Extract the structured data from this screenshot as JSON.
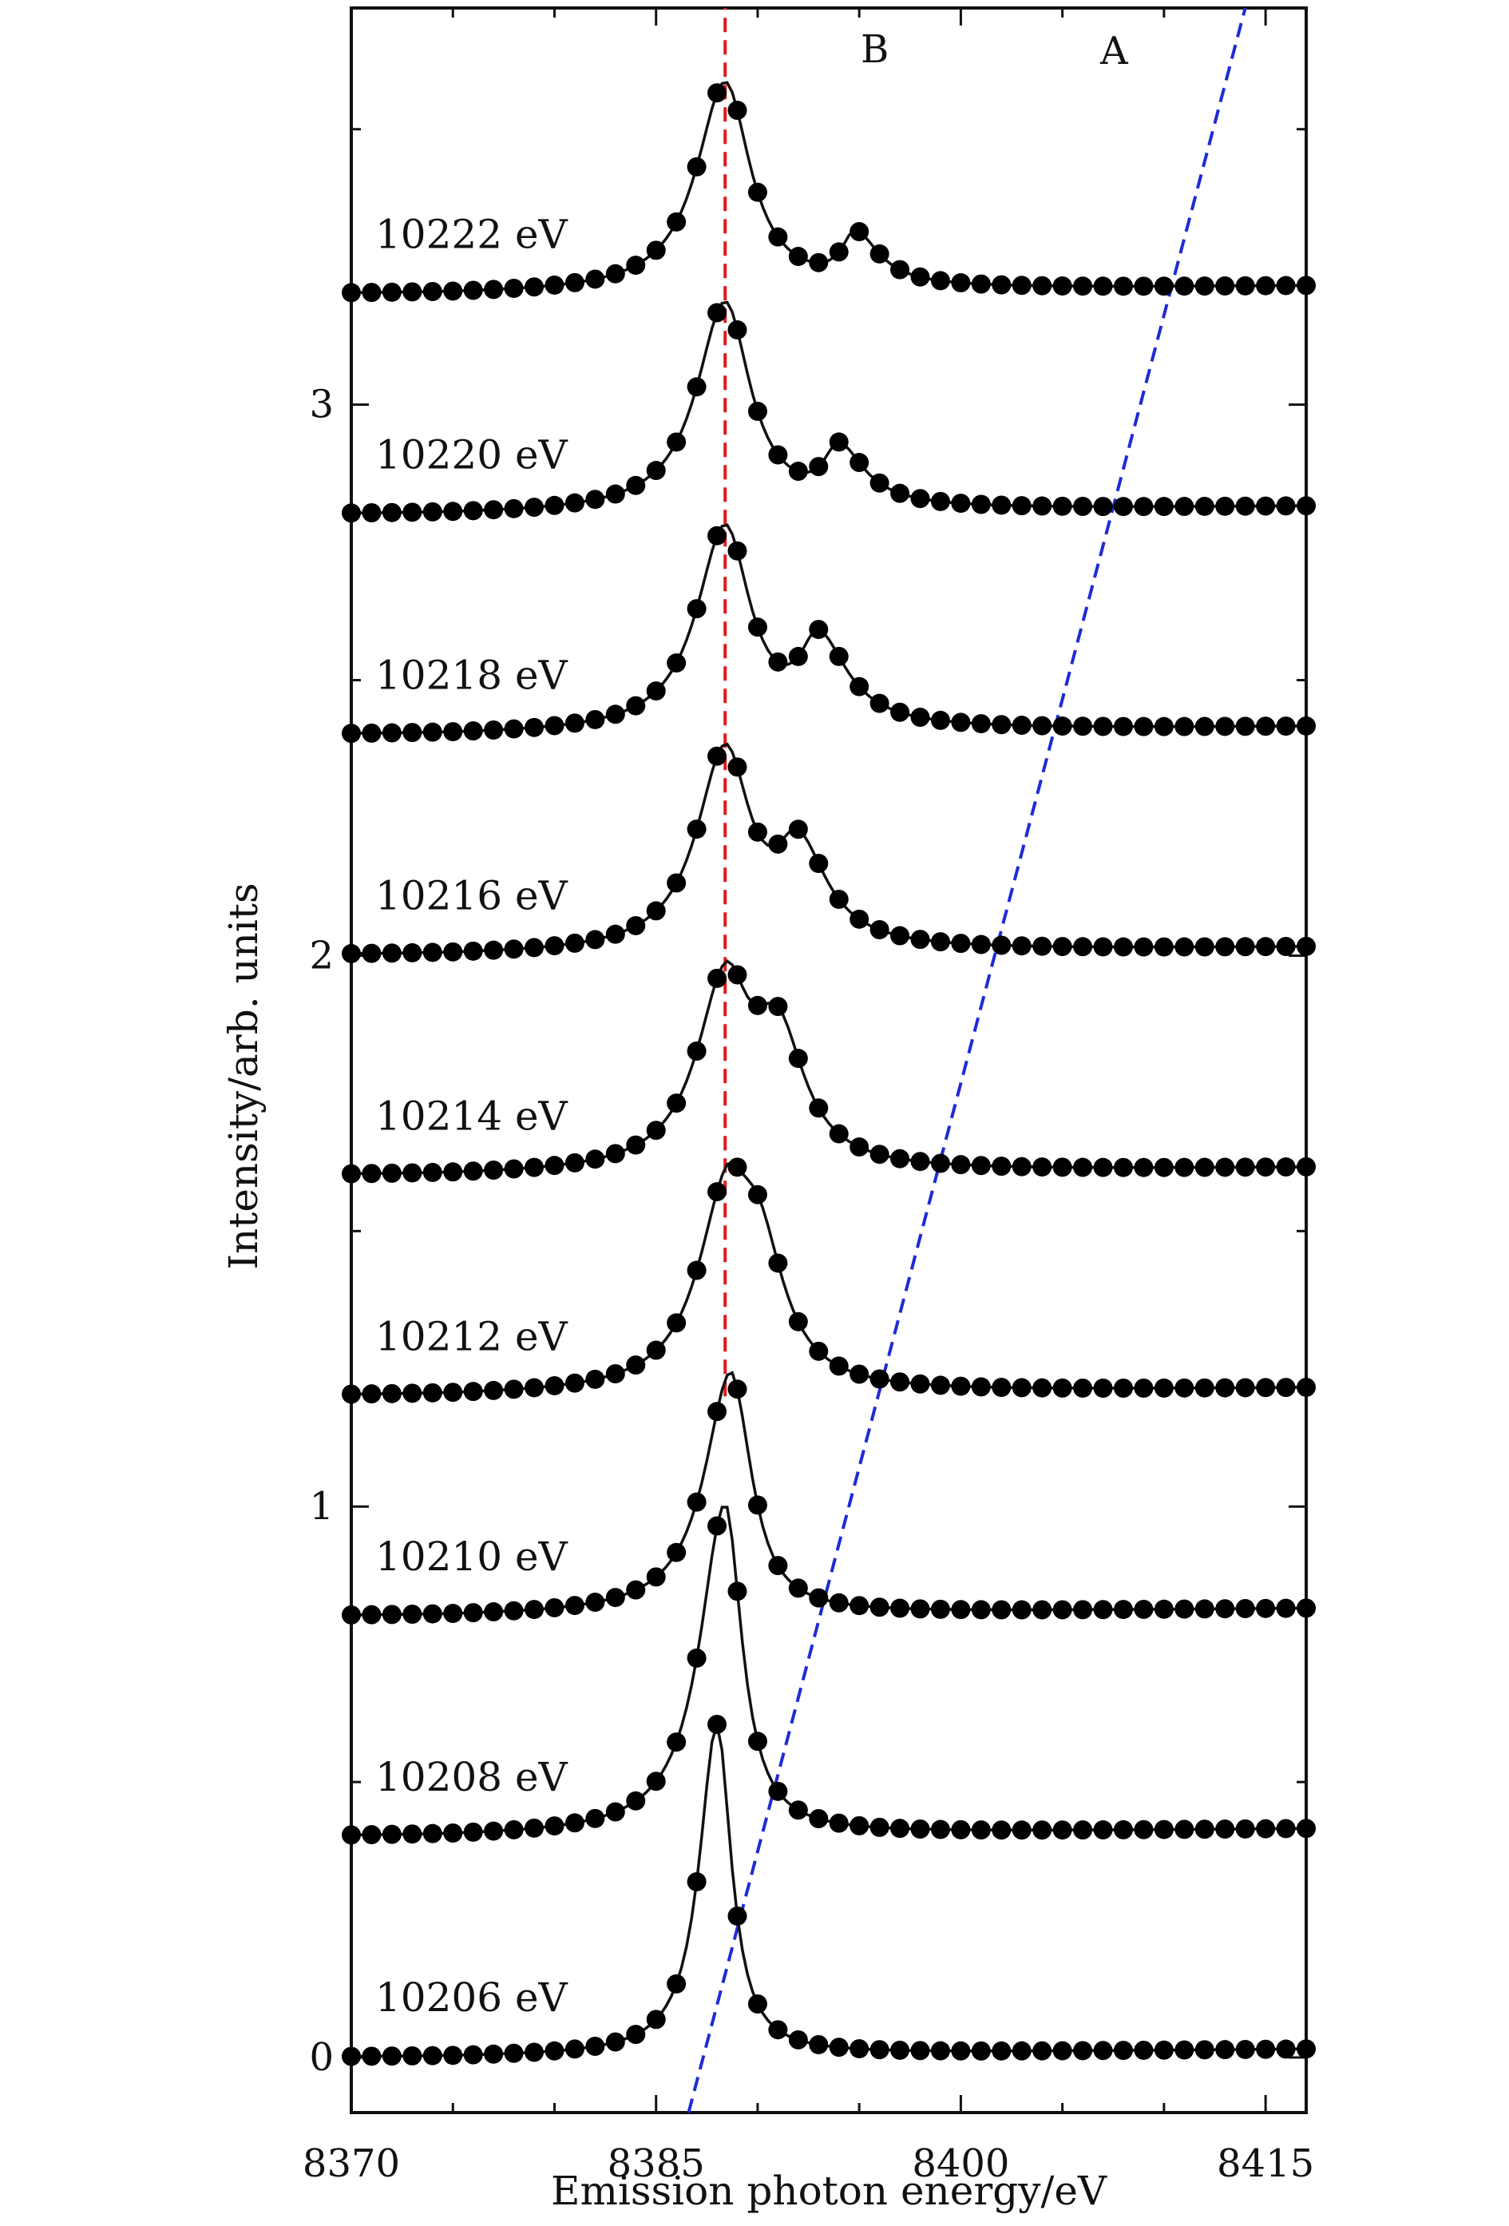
{
  "chart_data": {
    "type": "line",
    "title": "",
    "xlabel": "Emission photon energy/eV",
    "ylabel": "Intensity/arb. units",
    "xlim": [
      8370,
      8417
    ],
    "ylim": [
      -0.1,
      3.72
    ],
    "x_ticks": [
      8370,
      8385,
      8400,
      8415
    ],
    "y_ticks": [
      0,
      1,
      2,
      3
    ],
    "grid": false,
    "legend": "none",
    "marker": "filled-circle",
    "line_color": "#111111",
    "reference_lines": [
      {
        "label": "B",
        "color": "#e31a1c",
        "points": [
          [
            8388.4,
            1.2
          ],
          [
            8388.4,
            3.72
          ]
        ]
      },
      {
        "label": "A",
        "color": "#1f2bd6",
        "points": [
          [
            8386.6,
            -0.1
          ],
          [
            8414.0,
            3.72
          ]
        ]
      }
    ],
    "series": [
      {
        "name": "10206 eV",
        "offset": 0.0,
        "peaks": [
          {
            "center": 8388.0,
            "height": 0.6,
            "width_left": 1.05,
            "width_right": 0.85
          }
        ],
        "background": {
          "level": 0.0,
          "start": 8375.0,
          "rise": 0.015
        }
      },
      {
        "name": "10208 eV",
        "offset": 0.4,
        "peaks": [
          {
            "center": 8388.4,
            "height": 0.6,
            "width_left": 1.5,
            "width_right": 1.0
          }
        ],
        "background": {
          "level": 0.0,
          "start": 8375.0,
          "rise": 0.015
        }
      },
      {
        "name": "10210 eV",
        "offset": 0.8,
        "peaks": [
          {
            "center": 8388.6,
            "height": 0.3,
            "width_left": 1.5,
            "width_right": 1.0
          },
          {
            "center": 8389.1,
            "height": 0.15,
            "width_left": 1.8,
            "width_right": 1.2
          }
        ],
        "background": {
          "level": 0.0,
          "start": 8375.0,
          "rise": 0.015
        }
      },
      {
        "name": "10212 eV",
        "offset": 1.2,
        "peaks": [
          {
            "center": 8388.4,
            "height": 0.28,
            "width_left": 1.7,
            "width_right": 1.2
          },
          {
            "center": 8390.0,
            "height": 0.26,
            "width_left": 1.6,
            "width_right": 1.6
          }
        ],
        "background": {
          "level": 0.0,
          "start": 8375.0,
          "rise": 0.015
        }
      },
      {
        "name": "10214 eV",
        "offset": 1.6,
        "peaks": [
          {
            "center": 8388.4,
            "height": 0.32,
            "width_left": 1.7,
            "width_right": 1.4
          },
          {
            "center": 8391.0,
            "height": 0.23,
            "width_left": 1.6,
            "width_right": 1.6
          }
        ],
        "background": {
          "level": 0.0,
          "start": 8375.0,
          "rise": 0.015
        }
      },
      {
        "name": "10216 eV",
        "offset": 2.0,
        "peaks": [
          {
            "center": 8388.4,
            "height": 0.36,
            "width_left": 1.7,
            "width_right": 1.5
          },
          {
            "center": 8392.0,
            "height": 0.17,
            "width_left": 1.3,
            "width_right": 1.7
          }
        ],
        "background": {
          "level": 0.0,
          "start": 8375.0,
          "rise": 0.015
        }
      },
      {
        "name": "10218 eV",
        "offset": 2.4,
        "peaks": [
          {
            "center": 8388.4,
            "height": 0.37,
            "width_left": 1.7,
            "width_right": 1.5
          },
          {
            "center": 8393.0,
            "height": 0.15,
            "width_left": 1.1,
            "width_right": 1.7
          }
        ],
        "background": {
          "level": 0.0,
          "start": 8375.0,
          "rise": 0.015
        }
      },
      {
        "name": "10220 eV",
        "offset": 2.8,
        "peaks": [
          {
            "center": 8388.4,
            "height": 0.38,
            "width_left": 1.7,
            "width_right": 1.5
          },
          {
            "center": 8394.0,
            "height": 0.1,
            "width_left": 0.9,
            "width_right": 1.5
          }
        ],
        "background": {
          "level": 0.0,
          "start": 8375.0,
          "rise": 0.015
        }
      },
      {
        "name": "10222 eV",
        "offset": 3.2,
        "peaks": [
          {
            "center": 8388.4,
            "height": 0.38,
            "width_left": 1.7,
            "width_right": 1.5
          },
          {
            "center": 8394.8,
            "height": 0.09,
            "width_left": 0.8,
            "width_right": 1.4
          }
        ],
        "background": {
          "level": 0.0,
          "start": 8375.0,
          "rise": 0.015
        }
      }
    ]
  }
}
